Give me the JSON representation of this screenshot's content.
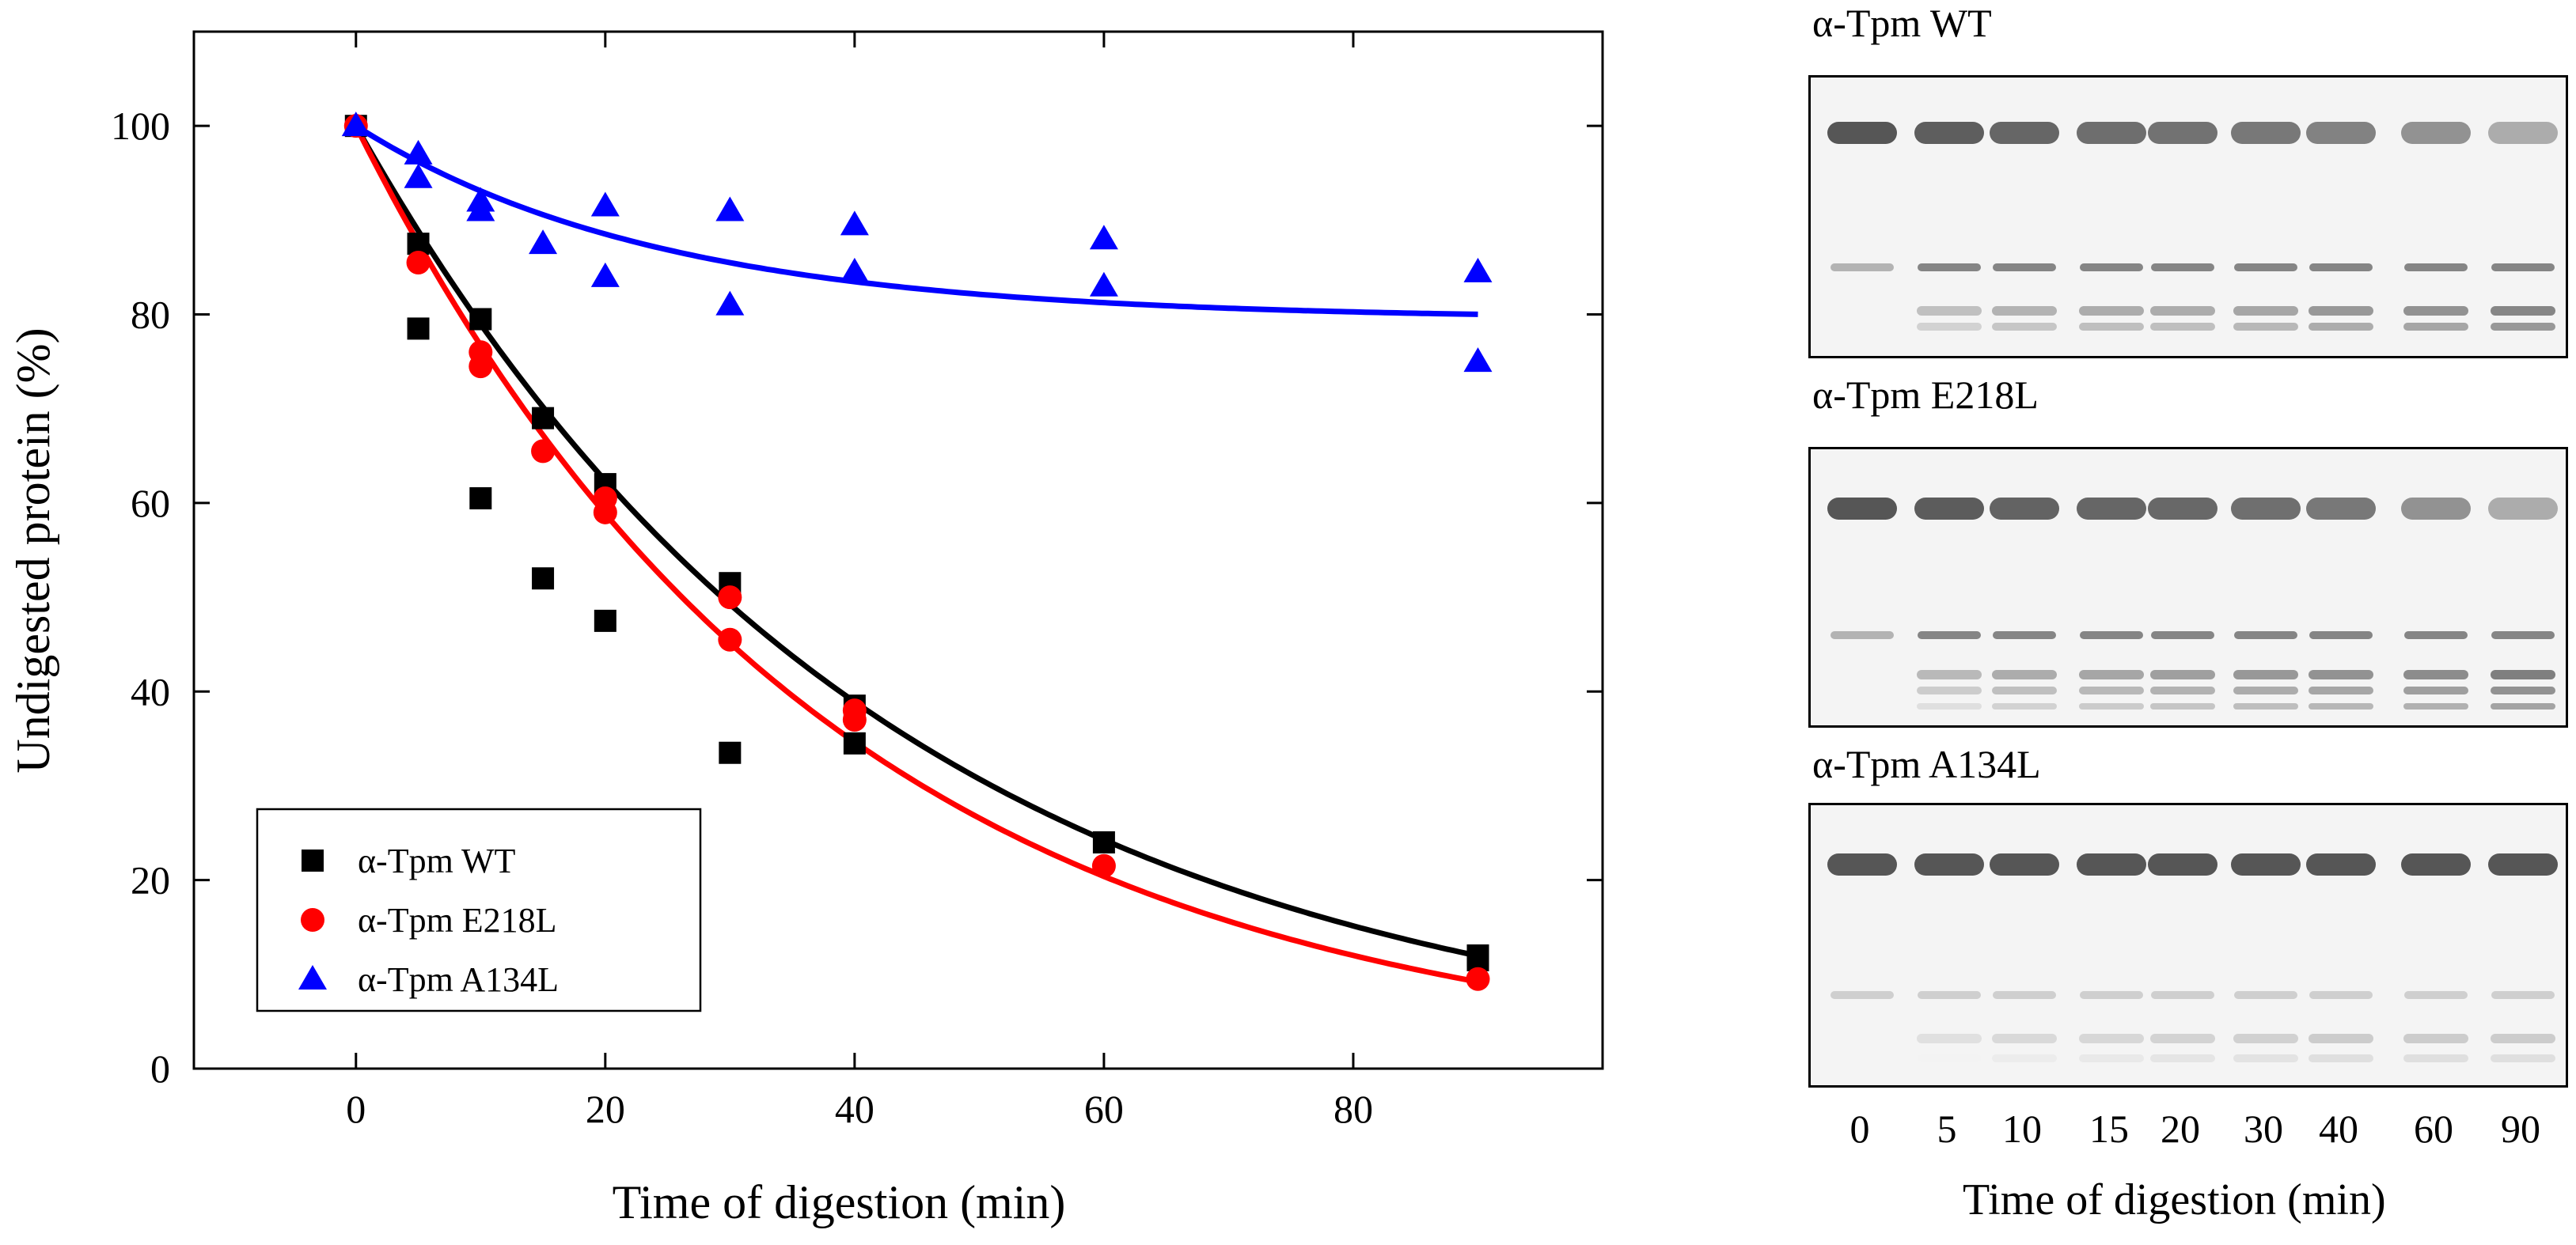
{
  "chart_data": {
    "type": "scatter",
    "title": "",
    "xlabel": "Time of digestion (min)",
    "ylabel": "Undigested protein (%)",
    "xlim": [
      -13,
      100
    ],
    "ylim": [
      0,
      110
    ],
    "xticks": [
      0,
      20,
      40,
      60,
      80
    ],
    "yticks": [
      0,
      20,
      40,
      60,
      80,
      100
    ],
    "grid": false,
    "legend_position": "bottom-left",
    "series": [
      {
        "name": "α-Tpm WT",
        "marker": "square",
        "color": "#000000",
        "x": [
          0,
          5,
          5,
          10,
          10,
          15,
          15,
          20,
          20,
          30,
          30,
          40,
          40,
          60,
          90,
          90
        ],
        "y": [
          100,
          87.5,
          78.5,
          79.5,
          60.5,
          69,
          52,
          62,
          47.5,
          51.5,
          33.5,
          38.5,
          34.5,
          24,
          12,
          11.5
        ],
        "fit": {
          "type": "exponential_decay",
          "x_start": 0,
          "x_end": 90,
          "rate": 0.0236
        }
      },
      {
        "name": "α-Tpm E218L",
        "marker": "circle",
        "color": "#ff0000",
        "x": [
          0,
          5,
          10,
          10,
          15,
          20,
          20,
          30,
          30,
          40,
          40,
          60,
          90
        ],
        "y": [
          100,
          85.5,
          76,
          74.5,
          65.5,
          60.5,
          59,
          50,
          45.5,
          38,
          37,
          21.5,
          9.5
        ],
        "fit": {
          "type": "exponential_decay",
          "x_start": 0,
          "x_end": 90,
          "rate": 0.0265
        }
      },
      {
        "name": "α-Tpm A134L",
        "marker": "triangle",
        "color": "#0000ff",
        "x": [
          0,
          5,
          5,
          10,
          10,
          15,
          20,
          20,
          30,
          30,
          40,
          40,
          60,
          60,
          90,
          90
        ],
        "y": [
          100,
          97,
          94.5,
          92,
          91,
          87.5,
          91.5,
          84,
          91,
          81,
          89.5,
          84.5,
          88,
          83,
          84.5,
          75
        ],
        "fit": {
          "type": "decay_to_plateau",
          "x_start": 0,
          "x_end": 90,
          "plateau": 79.5,
          "amplitude": 20.5,
          "rate": 0.041
        }
      }
    ]
  },
  "gels": {
    "panels": [
      {
        "title": "α-Tpm WT"
      },
      {
        "title": "α-Tpm E218L"
      },
      {
        "title": "α-Tpm A134L"
      }
    ],
    "lane_labels": [
      "0",
      "5",
      "10",
      "15",
      "20",
      "30",
      "40",
      "60",
      "90"
    ],
    "xlabel": "Time of digestion  (min)"
  }
}
